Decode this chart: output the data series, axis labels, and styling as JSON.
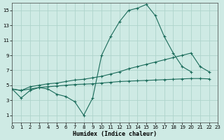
{
  "xlabel": "Humidex (Indice chaleur)",
  "background_color": "#ceeae4",
  "grid_color": "#aed4cc",
  "line_color": "#1a6b5a",
  "x_hours": [
    0,
    1,
    2,
    3,
    4,
    5,
    6,
    7,
    8,
    9,
    10,
    11,
    12,
    13,
    14,
    15,
    16,
    17,
    18,
    19,
    20,
    21,
    22,
    23
  ],
  "line1_y": [
    4.5,
    3.3,
    4.3,
    4.7,
    4.5,
    3.8,
    3.5,
    2.8,
    1.0,
    3.3,
    9.0,
    11.5,
    13.5,
    15.0,
    15.3,
    15.8,
    14.3,
    11.5,
    9.3,
    7.5,
    6.8,
    null,
    null,
    null
  ],
  "line2_y": [
    4.5,
    4.3,
    4.8,
    5.0,
    5.2,
    5.3,
    5.5,
    5.7,
    5.8,
    6.0,
    6.2,
    6.5,
    6.8,
    7.2,
    7.5,
    7.8,
    8.1,
    8.4,
    8.7,
    9.0,
    9.3,
    7.5,
    6.8,
    null
  ],
  "line3_y": [
    4.5,
    4.3,
    4.5,
    4.7,
    4.8,
    4.9,
    5.0,
    5.1,
    5.15,
    5.2,
    5.3,
    5.4,
    5.5,
    5.55,
    5.6,
    5.65,
    5.7,
    5.75,
    5.8,
    5.85,
    5.9,
    5.9,
    5.85,
    null
  ],
  "xlim": [
    0,
    23
  ],
  "ylim": [
    0,
    16
  ],
  "yticks": [
    1,
    3,
    5,
    7,
    9,
    11,
    13,
    15
  ],
  "xticks": [
    0,
    1,
    2,
    3,
    4,
    5,
    6,
    7,
    8,
    9,
    10,
    11,
    12,
    13,
    14,
    15,
    16,
    17,
    18,
    19,
    20,
    21,
    22,
    23
  ],
  "tick_fontsize": 5.0,
  "xlabel_fontsize": 6.0,
  "line_width": 0.8,
  "marker_size": 2.5
}
